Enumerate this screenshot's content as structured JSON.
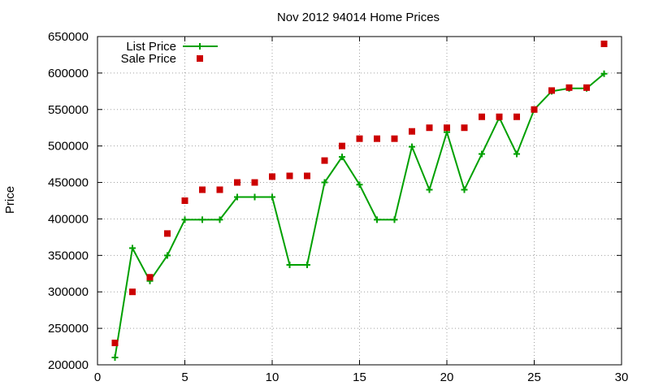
{
  "chart_data": {
    "type": "line",
    "title": "Nov 2012 94014 Home Prices",
    "xlabel": "",
    "ylabel": "Price",
    "xlim": [
      0,
      30
    ],
    "ylim": [
      200000,
      650000
    ],
    "xticks": [
      0,
      5,
      10,
      15,
      20,
      25,
      30
    ],
    "yticks": [
      200000,
      250000,
      300000,
      350000,
      400000,
      450000,
      500000,
      550000,
      600000,
      650000
    ],
    "grid": true,
    "legend_position": "top-left",
    "series": [
      {
        "name": "List Price",
        "style": "line-with-plus-markers",
        "color": "#00a000",
        "x": [
          1,
          2,
          3,
          4,
          5,
          6,
          7,
          8,
          9,
          10,
          11,
          12,
          13,
          14,
          15,
          16,
          17,
          18,
          19,
          20,
          21,
          22,
          23,
          24,
          25,
          26,
          27,
          28,
          29
        ],
        "y": [
          210000,
          360000,
          315000,
          350000,
          399000,
          399000,
          399000,
          430000,
          430000,
          430000,
          337000,
          337000,
          450000,
          485000,
          447000,
          399000,
          399000,
          499000,
          440000,
          519000,
          440000,
          489000,
          539000,
          489000,
          550000,
          575000,
          579000,
          579000,
          599000
        ]
      },
      {
        "name": "Sale Price",
        "style": "square-markers",
        "color": "#cc0000",
        "x": [
          1,
          2,
          3,
          4,
          5,
          6,
          7,
          8,
          9,
          10,
          11,
          12,
          13,
          14,
          15,
          16,
          17,
          18,
          19,
          20,
          21,
          22,
          23,
          24,
          25,
          26,
          27,
          28,
          29
        ],
        "y": [
          230000,
          300000,
          320000,
          380000,
          425000,
          440000,
          440000,
          450000,
          450000,
          458000,
          459000,
          459000,
          480000,
          500000,
          510000,
          510000,
          510000,
          520000,
          525000,
          525000,
          525000,
          540000,
          540000,
          540000,
          550000,
          576000,
          580000,
          580000,
          640000
        ]
      }
    ]
  }
}
